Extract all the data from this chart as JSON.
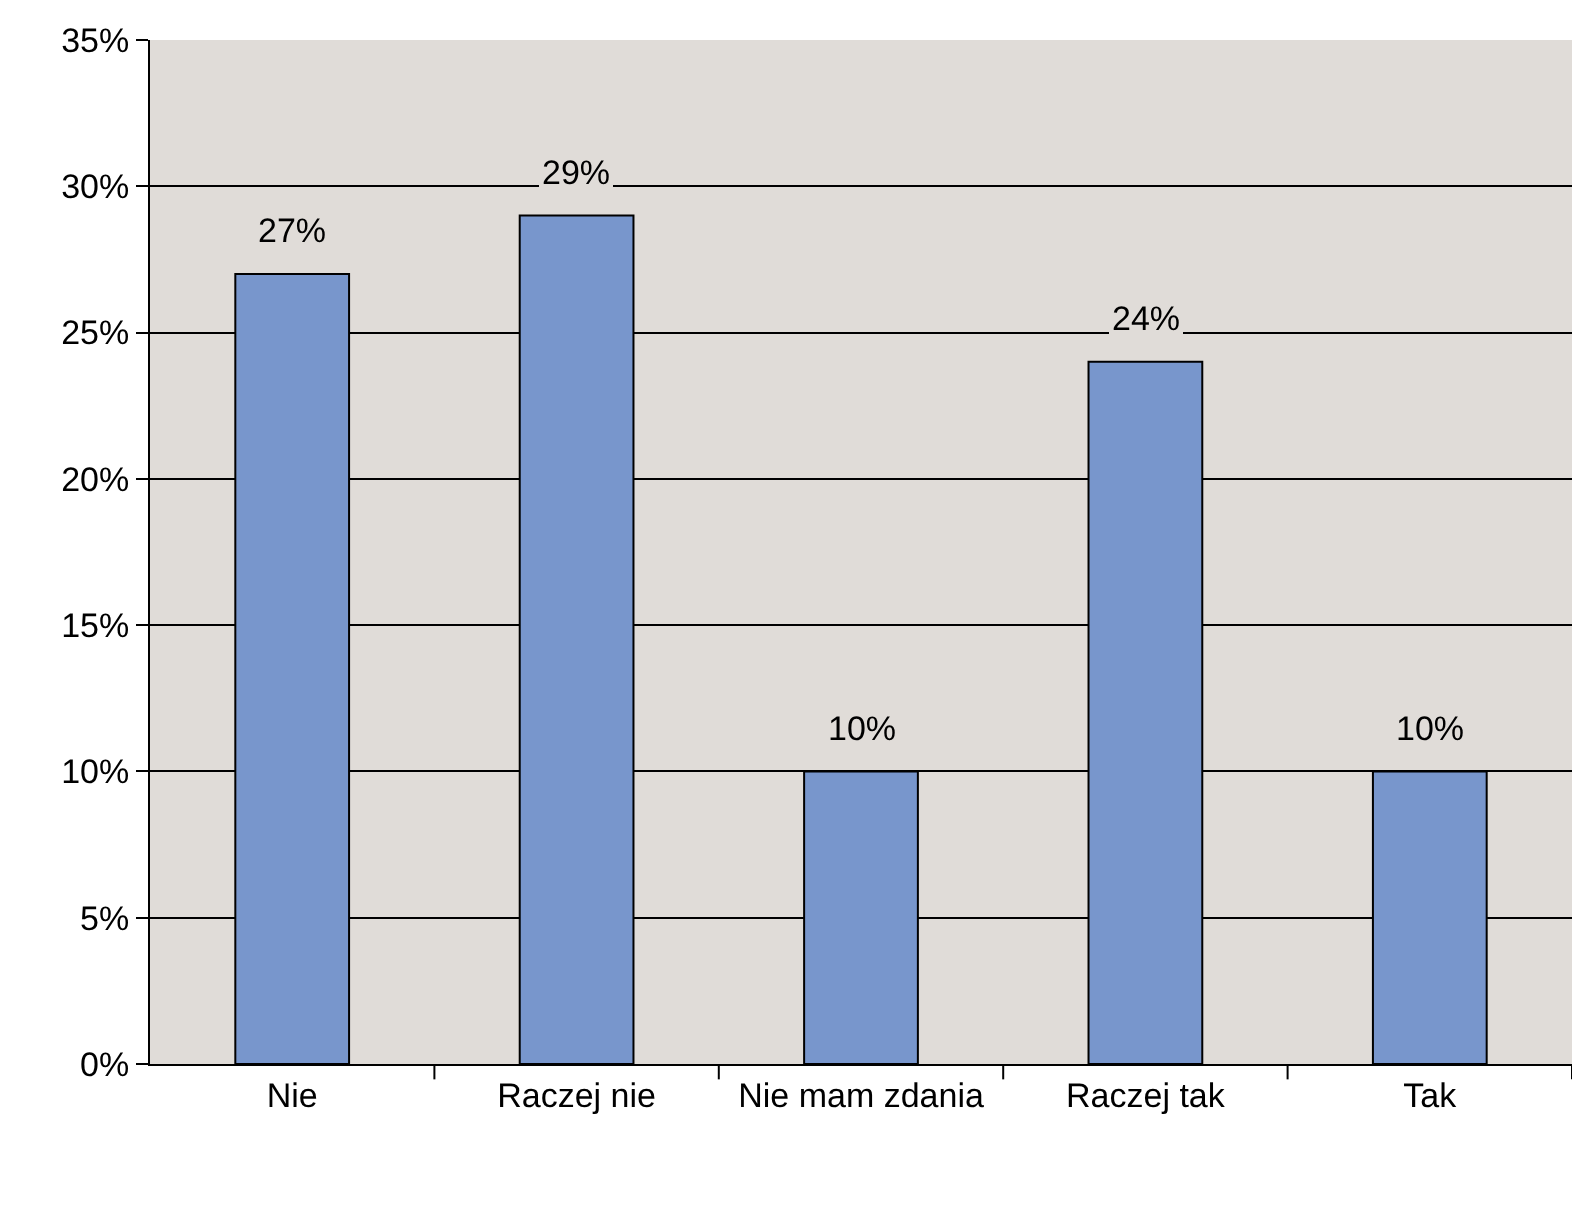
{
  "chart_data": {
    "type": "bar",
    "categories": [
      "Nie",
      "Raczej nie",
      "Nie mam zdania",
      "Raczej tak",
      "Tak"
    ],
    "values": [
      27,
      29,
      10,
      24,
      10
    ],
    "color": "#7896cc",
    "value_labels": [
      "27%",
      "29%",
      "10%",
      "24%",
      "10%"
    ],
    "ylim": [
      0,
      35
    ],
    "yticks": [
      {
        "value": 0,
        "label": "0%"
      },
      {
        "value": 5,
        "label": "5%"
      },
      {
        "value": 10,
        "label": "10%"
      },
      {
        "value": 15,
        "label": "15%"
      },
      {
        "value": 20,
        "label": "20%"
      },
      {
        "value": 25,
        "label": "25%"
      },
      {
        "value": 30,
        "label": "30%"
      },
      {
        "value": 35,
        "label": "35%"
      }
    ],
    "grid": "y"
  }
}
